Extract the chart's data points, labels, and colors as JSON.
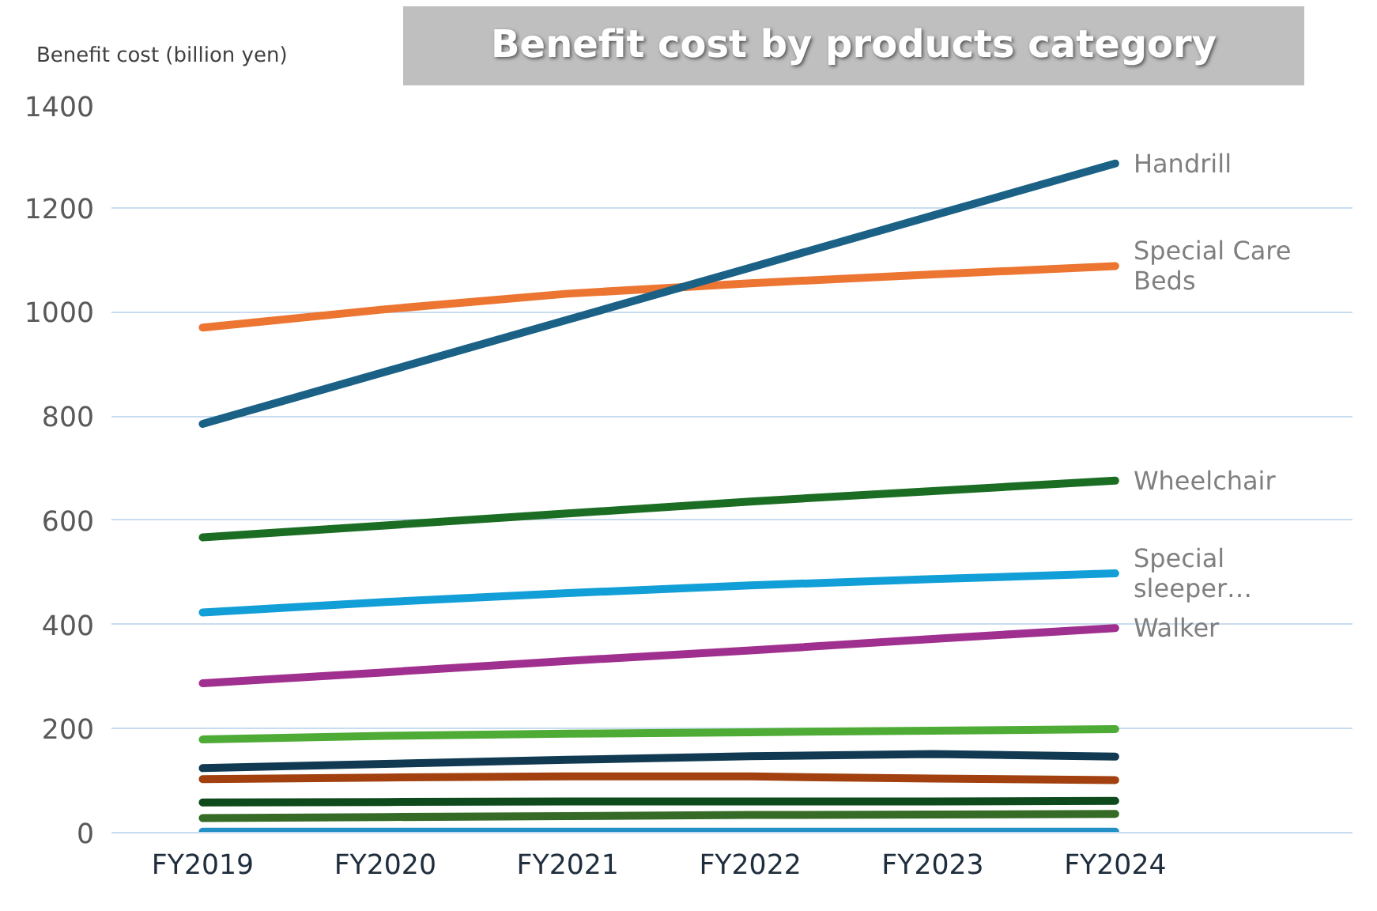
{
  "chart_data": {
    "type": "line",
    "title": "Benefit cost by products category",
    "ylabel": "Benefit cost (billion yen)",
    "categories": [
      "FY2019",
      "FY2020",
      "FY2021",
      "FY2022",
      "FY2023",
      "FY2024"
    ],
    "ylim": [
      0,
      1400
    ],
    "yticks": [
      0,
      200,
      400,
      600,
      800,
      1000,
      1200,
      1400
    ],
    "grid": "y",
    "marker": "none",
    "line_style": "solid",
    "series": [
      {
        "name": "Handrill",
        "color": "#1a6185",
        "values": [
          785,
          885,
          985,
          1085,
          1185,
          1285
        ]
      },
      {
        "name": "Special Care Beds",
        "color": "#ec7532",
        "values": [
          970,
          1005,
          1035,
          1055,
          1072,
          1088
        ]
      },
      {
        "name": "Wheelchair",
        "color": "#1b6d24",
        "values": [
          567,
          590,
          613,
          636,
          656,
          676
        ]
      },
      {
        "name": "Special sleeper…",
        "color": "#129fd7",
        "values": [
          423,
          443,
          460,
          475,
          487,
          498
        ]
      },
      {
        "name": "Walker",
        "color": "#a0308f",
        "values": [
          287,
          308,
          330,
          350,
          372,
          393
        ]
      },
      {
        "color": "#4eab35",
        "values": [
          179,
          186,
          190,
          193,
          196,
          199
        ]
      },
      {
        "color": "#113a52",
        "values": [
          124,
          132,
          140,
          147,
          151,
          146
        ]
      },
      {
        "color": "#a2410f",
        "values": [
          103,
          106,
          108,
          108,
          104,
          101
        ]
      },
      {
        "color": "#0e4a1b",
        "values": [
          58,
          59,
          60,
          60,
          60,
          61
        ]
      },
      {
        "color": "#356b26",
        "values": [
          28,
          30,
          32,
          34,
          35,
          36
        ]
      },
      {
        "color": "#2391c6",
        "values": [
          2,
          2,
          2,
          2,
          2,
          2
        ]
      }
    ]
  }
}
